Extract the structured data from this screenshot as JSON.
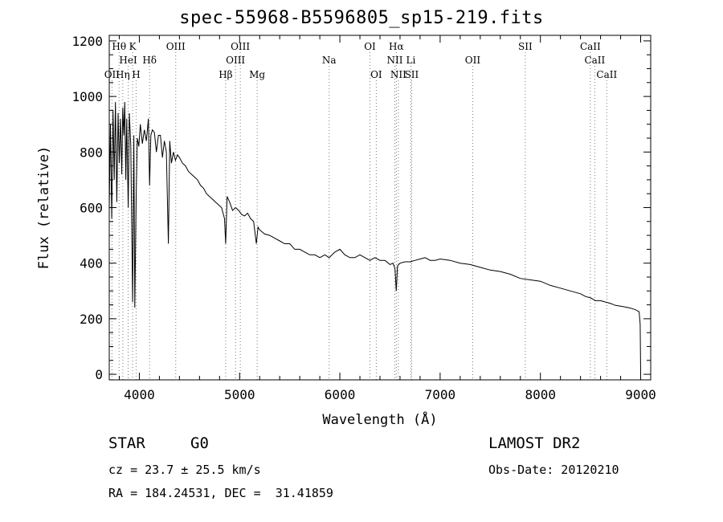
{
  "title": "spec-55968-B5596805_sp15-219.fits",
  "info": {
    "object_type": "STAR",
    "object_class": "G0",
    "survey": "LAMOST DR2",
    "redshift": "cz = 23.7 ± 25.5 km/s",
    "obs_date": "Obs-Date: 20120210",
    "coords": "RA = 184.24531, DEC =  31.41859"
  },
  "chart_data": {
    "type": "line",
    "title": "spec-55968-B5596805_sp15-219.fits",
    "xlabel": "Wavelength (Å)",
    "ylabel": "Flux (relative)",
    "xlim": [
      3700,
      9100
    ],
    "ylim": [
      -20,
      1220
    ],
    "xticks": [
      4000,
      5000,
      6000,
      7000,
      8000,
      9000
    ],
    "yticks": [
      0,
      200,
      400,
      600,
      800,
      1000,
      1200
    ],
    "grid": false,
    "series": [
      {
        "x": [
          3700,
          3712,
          3725,
          3738,
          3750,
          3762,
          3775,
          3788,
          3800,
          3812,
          3825,
          3835,
          3845,
          3855,
          3865,
          3875,
          3889,
          3900,
          3915,
          3933,
          3945,
          3955,
          3968,
          3980,
          3995,
          4010,
          4030,
          4050,
          4070,
          4090,
          4102,
          4115,
          4130,
          4150,
          4170,
          4190,
          4210,
          4230,
          4250,
          4270,
          4290,
          4303,
          4320,
          4340,
          4360,
          4380,
          4400,
          4430,
          4460,
          4490,
          4520,
          4550,
          4580,
          4610,
          4640,
          4670,
          4700,
          4730,
          4760,
          4790,
          4820,
          4850,
          4861,
          4875,
          4900,
          4930,
          4960,
          4990,
          5020,
          5050,
          5080,
          5110,
          5140,
          5167,
          5184,
          5200,
          5250,
          5300,
          5350,
          5400,
          5450,
          5500,
          5550,
          5600,
          5650,
          5700,
          5750,
          5800,
          5850,
          5893,
          5950,
          6000,
          6050,
          6100,
          6150,
          6200,
          6250,
          6300,
          6350,
          6400,
          6450,
          6500,
          6530,
          6550,
          6563,
          6575,
          6600,
          6650,
          6700,
          6750,
          6800,
          6850,
          6900,
          6950,
          7000,
          7100,
          7200,
          7300,
          7400,
          7500,
          7600,
          7700,
          7800,
          7900,
          8000,
          8100,
          8200,
          8300,
          8400,
          8450,
          8500,
          8550,
          8600,
          8650,
          8700,
          8750,
          8800,
          8850,
          8900,
          8950,
          8985,
          8995,
          9000
        ],
        "values": [
          600,
          900,
          560,
          950,
          700,
          980,
          620,
          940,
          760,
          920,
          720,
          960,
          860,
          980,
          700,
          920,
          600,
          940,
          820,
          260,
          860,
          240,
          640,
          850,
          820,
          900,
          830,
          880,
          840,
          920,
          680,
          860,
          880,
          870,
          800,
          860,
          860,
          780,
          840,
          800,
          470,
          840,
          760,
          800,
          770,
          790,
          780,
          760,
          750,
          730,
          720,
          710,
          700,
          680,
          670,
          650,
          640,
          630,
          620,
          610,
          600,
          560,
          470,
          640,
          620,
          590,
          600,
          590,
          575,
          570,
          580,
          560,
          550,
          470,
          530,
          520,
          505,
          500,
          490,
          480,
          470,
          470,
          450,
          450,
          440,
          430,
          430,
          420,
          430,
          420,
          440,
          450,
          430,
          420,
          420,
          430,
          420,
          410,
          420,
          410,
          410,
          395,
          400,
          380,
          300,
          390,
          400,
          405,
          405,
          410,
          415,
          420,
          410,
          410,
          415,
          410,
          400,
          395,
          385,
          375,
          370,
          360,
          345,
          340,
          335,
          320,
          310,
          300,
          290,
          280,
          275,
          265,
          265,
          260,
          255,
          248,
          245,
          242,
          238,
          232,
          225,
          180,
          5
        ]
      }
    ],
    "line_markers": [
      {
        "label": "Hθ",
        "x": 3798,
        "row": 0
      },
      {
        "label": "K",
        "x": 3933,
        "row": 0
      },
      {
        "label": "OIII",
        "x": 4363,
        "row": 0
      },
      {
        "label": "OIII",
        "x": 5007,
        "row": 0
      },
      {
        "label": "OI",
        "x": 6300,
        "row": 0
      },
      {
        "label": "Hα",
        "x": 6563,
        "row": 0
      },
      {
        "label": "SII",
        "x": 7849,
        "row": 0
      },
      {
        "label": "CaII",
        "x": 8498,
        "row": 0
      },
      {
        "label": "HeI",
        "x": 3889,
        "row": 1
      },
      {
        "label": "Hδ",
        "x": 4102,
        "row": 1
      },
      {
        "label": "OIII",
        "x": 4959,
        "row": 1
      },
      {
        "label": "Na",
        "x": 5893,
        "row": 1
      },
      {
        "label": "NII",
        "x": 6548,
        "row": 1
      },
      {
        "label": "Li",
        "x": 6708,
        "row": 1
      },
      {
        "label": "OII",
        "x": 7325,
        "row": 1
      },
      {
        "label": "CaII",
        "x": 8542,
        "row": 1
      },
      {
        "label": "OII",
        "x": 3727,
        "row": 2
      },
      {
        "label": "Hη",
        "x": 3835,
        "row": 2
      },
      {
        "label": "H",
        "x": 3968,
        "row": 2
      },
      {
        "label": "Hβ",
        "x": 4861,
        "row": 2
      },
      {
        "label": "Mg",
        "x": 5175,
        "row": 2
      },
      {
        "label": "OI",
        "x": 6363,
        "row": 2
      },
      {
        "label": "NII",
        "x": 6583,
        "row": 2
      },
      {
        "label": "SII",
        "x": 6716,
        "row": 2
      },
      {
        "label": "CaII",
        "x": 8662,
        "row": 2
      }
    ]
  }
}
